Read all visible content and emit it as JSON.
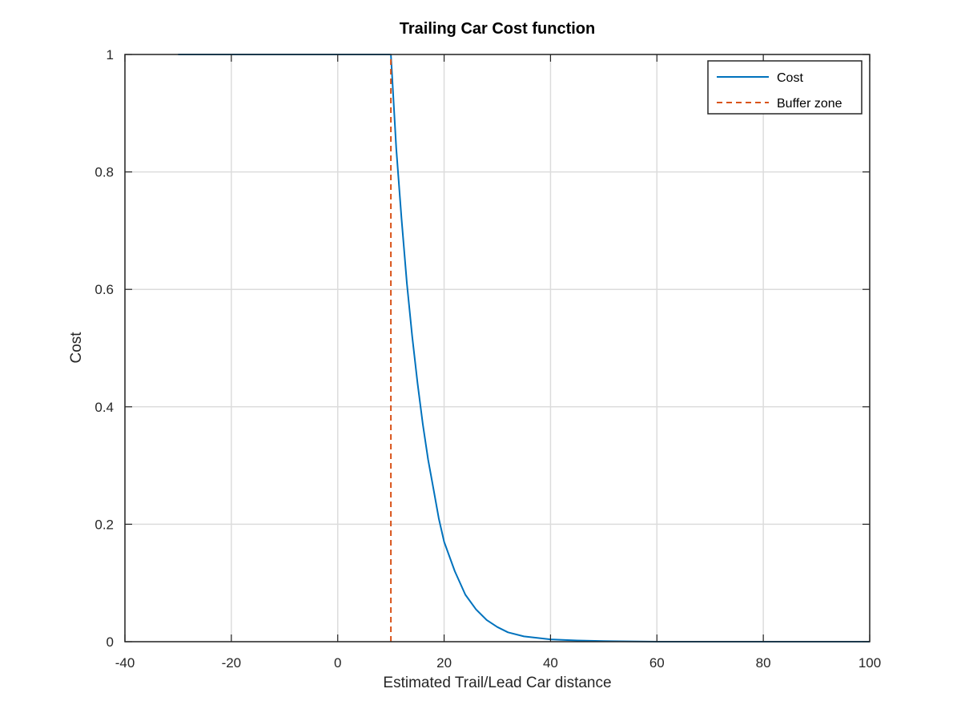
{
  "chart_data": {
    "type": "line",
    "title": "Trailing Car Cost function",
    "xlabel": "Estimated Trail/Lead Car distance",
    "ylabel": "Cost",
    "xlim": [
      -40,
      100
    ],
    "ylim": [
      0,
      1
    ],
    "x_ticks": [
      -40,
      -20,
      0,
      20,
      40,
      60,
      80,
      100
    ],
    "y_ticks": [
      0,
      0.2,
      0.4,
      0.6,
      0.8,
      1
    ],
    "grid": true,
    "legend_position": "top-right",
    "series": [
      {
        "name": "Cost",
        "style": "solid",
        "color": "#0072BD",
        "x": [
          -30,
          -20,
          -10,
          0,
          10,
          11,
          12,
          13,
          14,
          15,
          16,
          17,
          18,
          19,
          20,
          22,
          24,
          26,
          28,
          30,
          32,
          35,
          40,
          45,
          50,
          60,
          70,
          80,
          90,
          100
        ],
        "y": [
          1,
          1,
          1,
          1,
          1,
          0.84,
          0.72,
          0.61,
          0.52,
          0.44,
          0.37,
          0.31,
          0.26,
          0.21,
          0.17,
          0.12,
          0.08,
          0.055,
          0.037,
          0.025,
          0.016,
          0.009,
          0.004,
          0.002,
          0.001,
          0,
          0,
          0,
          0,
          0
        ]
      },
      {
        "name": "Buffer zone",
        "style": "dashed",
        "color": "#D95319",
        "x": [
          10,
          10
        ],
        "y": [
          0,
          1
        ]
      }
    ]
  }
}
